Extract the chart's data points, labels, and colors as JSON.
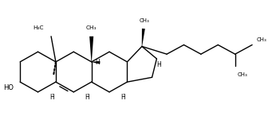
{
  "background": "#ffffff",
  "line_color": "#000000",
  "line_width": 1.0,
  "text_color": "#000000",
  "fig_width": 3.46,
  "fig_height": 1.46,
  "dpi": 100,
  "xlim": [
    0,
    20
  ],
  "ylim": [
    0,
    8.6
  ]
}
